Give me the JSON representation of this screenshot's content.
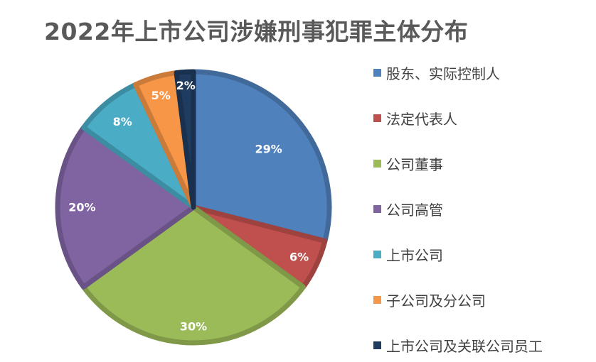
{
  "chart_data": {
    "type": "pie",
    "title": "2022年上市公司涉嫌刑事犯罪主体分布",
    "legend_position": "right",
    "slices": [
      {
        "name": "股东、实际控制人",
        "value": 29,
        "label": "29%",
        "color": "#4F81BD"
      },
      {
        "name": "法定代表人",
        "value": 6,
        "label": "6%",
        "color": "#C0504D"
      },
      {
        "name": "公司董事",
        "value": 30,
        "label": "30%",
        "color": "#9BBB59"
      },
      {
        "name": "公司高管",
        "value": 20,
        "label": "20%",
        "color": "#8064A2"
      },
      {
        "name": "上市公司",
        "value": 8,
        "label": "8%",
        "color": "#4BACC6"
      },
      {
        "name": "子公司及分公司",
        "value": 5,
        "label": "5%",
        "color": "#F79646"
      },
      {
        "name": "上市公司及关联公司员工",
        "value": 2,
        "label": "2%",
        "color": "#1F3B5F"
      }
    ]
  }
}
